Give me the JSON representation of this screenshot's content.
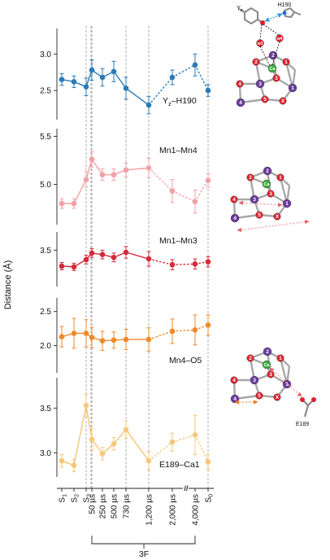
{
  "colors": {
    "Yz-H190": "#2a7ab5",
    "Mn1-Mn4": "#f2a0a6",
    "Mn1-Mn3": "#d42a3a",
    "Mn4-O5": "#ef8a2a",
    "E189-Ca1": "#f6c77a",
    "ox_atom": "#e0202e",
    "mn_atom": "#6a3a9c",
    "ca_atom": "#3aaa3a",
    "bond": "#a8a8a8",
    "guide": "#999999"
  },
  "chart_data": {
    "type": "line",
    "ylabel": "Distance (Å)",
    "x_tick_labels": [
      "S1",
      "S2",
      "S3",
      "50 µs",
      "250 µs",
      "500 µs",
      "730 µs",
      "1,200 µs",
      "2,000 µs",
      "4,000 µs",
      "S0"
    ],
    "x_tick_subs": [
      "1",
      "2",
      "3",
      "",
      "",
      "",
      "",
      "",
      "",
      "",
      "0"
    ],
    "x_group_label": "3F",
    "axis_break": "//",
    "panels": [
      {
        "name": "Yz–H190",
        "label_main": "Y",
        "label_sub": "z",
        "label_rest": "–H190",
        "ylim": [
          2.1,
          3.35
        ],
        "yticks": [
          2.5,
          3.0
        ],
        "ytick_labels": [
          "2.5",
          "3.0"
        ],
        "y": [
          2.65,
          2.62,
          2.55,
          2.78,
          2.68,
          2.76,
          2.53,
          2.3,
          2.68,
          2.85,
          2.5
        ],
        "err": [
          0.08,
          0.08,
          0.12,
          0.14,
          0.12,
          0.14,
          0.15,
          0.12,
          0.1,
          0.15,
          0.08
        ]
      },
      {
        "name": "Mn1–Mn4",
        "label_main": "Mn1–Mn4",
        "ylim": [
          4.58,
          5.58
        ],
        "yticks": [
          5.0,
          5.5
        ],
        "ytick_labels": [
          "5.0",
          "5.5"
        ],
        "y": [
          4.8,
          4.8,
          5.05,
          5.26,
          5.1,
          5.1,
          5.15,
          5.17,
          4.93,
          4.82,
          5.04
        ],
        "err": [
          0.05,
          0.05,
          0.08,
          0.08,
          0.06,
          0.06,
          0.07,
          0.1,
          0.12,
          0.12,
          0.07
        ]
      },
      {
        "name": "Mn1–Mn3",
        "label_main": "Mn1–Mn3",
        "ylim": [
          3.0,
          3.75
        ],
        "yticks": [
          3.5
        ],
        "ytick_labels": [
          "3.5"
        ],
        "y": [
          3.28,
          3.27,
          3.37,
          3.46,
          3.44,
          3.4,
          3.47,
          3.38,
          3.3,
          3.31,
          3.34
        ],
        "err": [
          0.05,
          0.05,
          0.06,
          0.06,
          0.06,
          0.06,
          0.08,
          0.1,
          0.07,
          0.07,
          0.07
        ]
      },
      {
        "name": "Mn4–O5",
        "label_main": "Mn4–O5",
        "ylim": [
          1.6,
          2.7
        ],
        "yticks": [
          2.0,
          2.5
        ],
        "ytick_labels": [
          "2.0",
          "2.5"
        ],
        "y": [
          2.13,
          2.18,
          2.18,
          2.12,
          2.07,
          2.08,
          2.09,
          2.09,
          2.21,
          2.23,
          2.3
        ],
        "err": [
          0.15,
          0.22,
          0.2,
          0.15,
          0.14,
          0.12,
          0.15,
          0.17,
          0.18,
          0.22,
          0.15
        ]
      },
      {
        "name": "E189–Ca1",
        "label_main": "E189–Ca1",
        "ylim": [
          2.73,
          3.84
        ],
        "yticks": [
          3.0,
          3.5
        ],
        "ytick_labels": [
          "3.0",
          "3.5"
        ],
        "y": [
          2.91,
          2.86,
          3.53,
          3.15,
          2.99,
          3.1,
          3.26,
          2.91,
          3.12,
          3.2,
          2.9
        ],
        "err": [
          0.07,
          0.07,
          0.12,
          0.12,
          0.07,
          0.07,
          0.1,
          0.1,
          0.1,
          0.22,
          0.08
        ]
      }
    ]
  },
  "structures": {
    "top_labels": {
      "tyr": "Y",
      "tyr_sub": "z",
      "his": "H190",
      "w3": "w3",
      "w4": "w4"
    },
    "atom_labels": {
      "o1": "1",
      "o2": "2",
      "o3": "3",
      "o4": "4",
      "o5": "5",
      "ox": "X",
      "mn1": "1",
      "mn2": "2",
      "mn3": "3",
      "mn4": "4",
      "ca": "Ca"
    },
    "e189_label": "E189"
  }
}
